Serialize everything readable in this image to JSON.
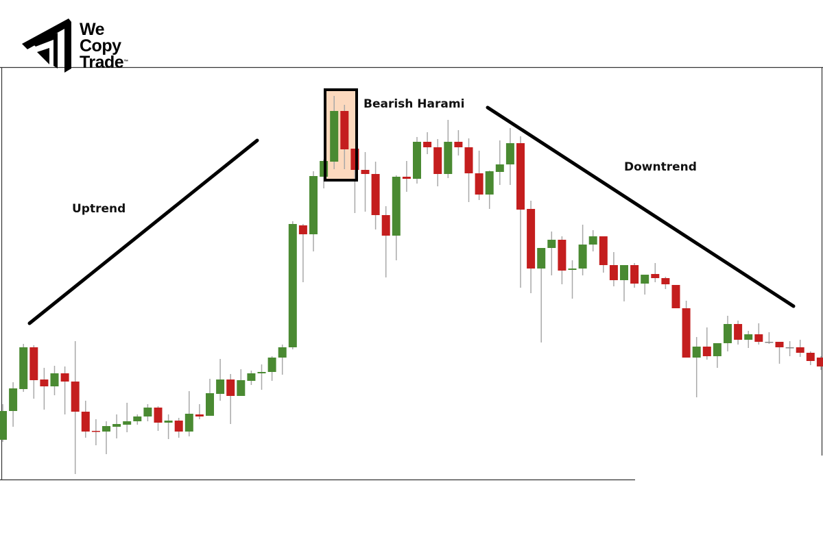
{
  "logo": {
    "line1": "We",
    "line2": "Copy",
    "line3": "Trade",
    "tm": "™"
  },
  "chart_data": {
    "type": "candlestick",
    "title": "",
    "annotations": {
      "uptrend": "Uptrend",
      "pattern": "Bearish Harami",
      "downtrend": "Downtrend"
    },
    "highlight_candles": [
      33,
      34
    ],
    "axes_visible": false,
    "grid": false,
    "colors": {
      "bullish": "#4a8a32",
      "bearish": "#c41e1e",
      "wick": "#a8a8a8",
      "highlight_fill": "#fcd9be",
      "trendline": "#000000"
    },
    "ohlc_fields": [
      "open",
      "high",
      "low",
      "close"
    ],
    "candles": [
      [
        5.8,
        11.0,
        5.5,
        10.0
      ],
      [
        10.0,
        14.2,
        7.7,
        13.3
      ],
      [
        13.2,
        19.8,
        12.8,
        19.3
      ],
      [
        19.3,
        19.6,
        11.8,
        14.5
      ],
      [
        14.6,
        16.3,
        10.2,
        13.6
      ],
      [
        13.6,
        16.6,
        12.3,
        15.5
      ],
      [
        15.5,
        16.5,
        9.5,
        14.3
      ],
      [
        14.3,
        20.2,
        0.8,
        9.9
      ],
      [
        9.9,
        11.5,
        6.1,
        7.0
      ],
      [
        7.1,
        8.8,
        5.0,
        7.0
      ],
      [
        7.0,
        8.5,
        3.7,
        7.8
      ],
      [
        7.7,
        9.5,
        6.0,
        8.1
      ],
      [
        8.0,
        11.2,
        6.9,
        8.5
      ],
      [
        8.5,
        9.5,
        8.0,
        9.2
      ],
      [
        9.2,
        11.0,
        8.5,
        10.5
      ],
      [
        10.5,
        10.7,
        7.1,
        8.3
      ],
      [
        8.3,
        9.5,
        5.9,
        8.6
      ],
      [
        8.6,
        9.0,
        6.1,
        7.0
      ],
      [
        7.0,
        12.9,
        6.3,
        9.6
      ],
      [
        9.5,
        11.0,
        8.8,
        9.2
      ],
      [
        9.3,
        14.7,
        9.3,
        12.6
      ],
      [
        12.5,
        17.6,
        11.5,
        14.6
      ],
      [
        14.6,
        15.4,
        8.1,
        12.2
      ],
      [
        12.2,
        16.1,
        12.2,
        14.5
      ],
      [
        14.4,
        15.9,
        13.8,
        15.5
      ],
      [
        15.5,
        16.8,
        13.1,
        15.7
      ],
      [
        15.7,
        18.0,
        14.4,
        17.8
      ],
      [
        17.8,
        19.7,
        15.3,
        19.3
      ],
      [
        19.3,
        37.7,
        19.0,
        37.3
      ],
      [
        37.1,
        37.3,
        28.8,
        35.8
      ],
      [
        35.8,
        45.0,
        33.3,
        44.3
      ],
      [
        44.2,
        46.7,
        42.5,
        46.5
      ],
      [
        46.4,
        56.0,
        45.3,
        53.8
      ],
      [
        53.8,
        54.7,
        45.3,
        48.2
      ],
      [
        48.3,
        48.3,
        38.9,
        45.2
      ],
      [
        45.2,
        47.8,
        39.1,
        44.6
      ],
      [
        44.6,
        46.4,
        36.5,
        38.6
      ],
      [
        38.6,
        39.9,
        29.5,
        35.6
      ],
      [
        35.6,
        44.4,
        32.0,
        44.2
      ],
      [
        44.2,
        46.5,
        42.0,
        43.9
      ],
      [
        43.9,
        50.0,
        43.2,
        49.3
      ],
      [
        49.3,
        50.7,
        47.5,
        48.5
      ],
      [
        48.5,
        49.7,
        42.8,
        44.6
      ],
      [
        44.6,
        52.5,
        44.0,
        49.3
      ],
      [
        49.3,
        51.0,
        47.3,
        48.5
      ],
      [
        48.5,
        49.8,
        40.5,
        44.7
      ],
      [
        44.7,
        48.0,
        40.8,
        41.6
      ],
      [
        41.6,
        45.1,
        39.5,
        45.0
      ],
      [
        44.9,
        49.5,
        43.0,
        46.0
      ],
      [
        46.0,
        51.3,
        43.0,
        49.1
      ],
      [
        49.1,
        50.1,
        28.0,
        39.4
      ],
      [
        39.5,
        40.7,
        27.2,
        30.8
      ],
      [
        30.8,
        33.8,
        20.0,
        33.8
      ],
      [
        33.8,
        36.2,
        29.8,
        35.0
      ],
      [
        35.0,
        35.5,
        28.5,
        30.5
      ],
      [
        30.6,
        32.0,
        26.4,
        30.8
      ],
      [
        30.8,
        37.2,
        29.8,
        34.3
      ],
      [
        34.3,
        36.4,
        33.3,
        35.5
      ],
      [
        35.5,
        35.5,
        30.2,
        31.3
      ],
      [
        31.3,
        33.2,
        28.2,
        29.1
      ],
      [
        29.1,
        31.3,
        26.0,
        31.3
      ],
      [
        31.3,
        31.6,
        28.0,
        28.6
      ],
      [
        28.6,
        29.9,
        27.0,
        29.9
      ],
      [
        30.0,
        31.6,
        28.8,
        29.4
      ],
      [
        29.4,
        29.6,
        27.8,
        28.5
      ],
      [
        28.4,
        28.4,
        25.0,
        25.0
      ],
      [
        25.0,
        26.1,
        17.8,
        17.8
      ],
      [
        17.8,
        20.8,
        12.0,
        19.4
      ],
      [
        19.4,
        22.2,
        17.5,
        18.0
      ],
      [
        18.0,
        19.9,
        16.3,
        19.9
      ],
      [
        19.9,
        23.9,
        18.7,
        22.7
      ],
      [
        22.7,
        23.2,
        19.7,
        20.4
      ],
      [
        20.4,
        21.7,
        19.2,
        21.2
      ],
      [
        21.2,
        22.8,
        19.7,
        20.1
      ],
      [
        20.1,
        21.5,
        19.8,
        20.1
      ],
      [
        20.1,
        20.1,
        16.9,
        19.3
      ],
      [
        19.3,
        20.2,
        18.0,
        19.3
      ],
      [
        19.3,
        20.4,
        17.9,
        18.5
      ],
      [
        18.5,
        18.7,
        16.7,
        17.3
      ],
      [
        17.8,
        18.0,
        16.0,
        16.5
      ]
    ]
  }
}
